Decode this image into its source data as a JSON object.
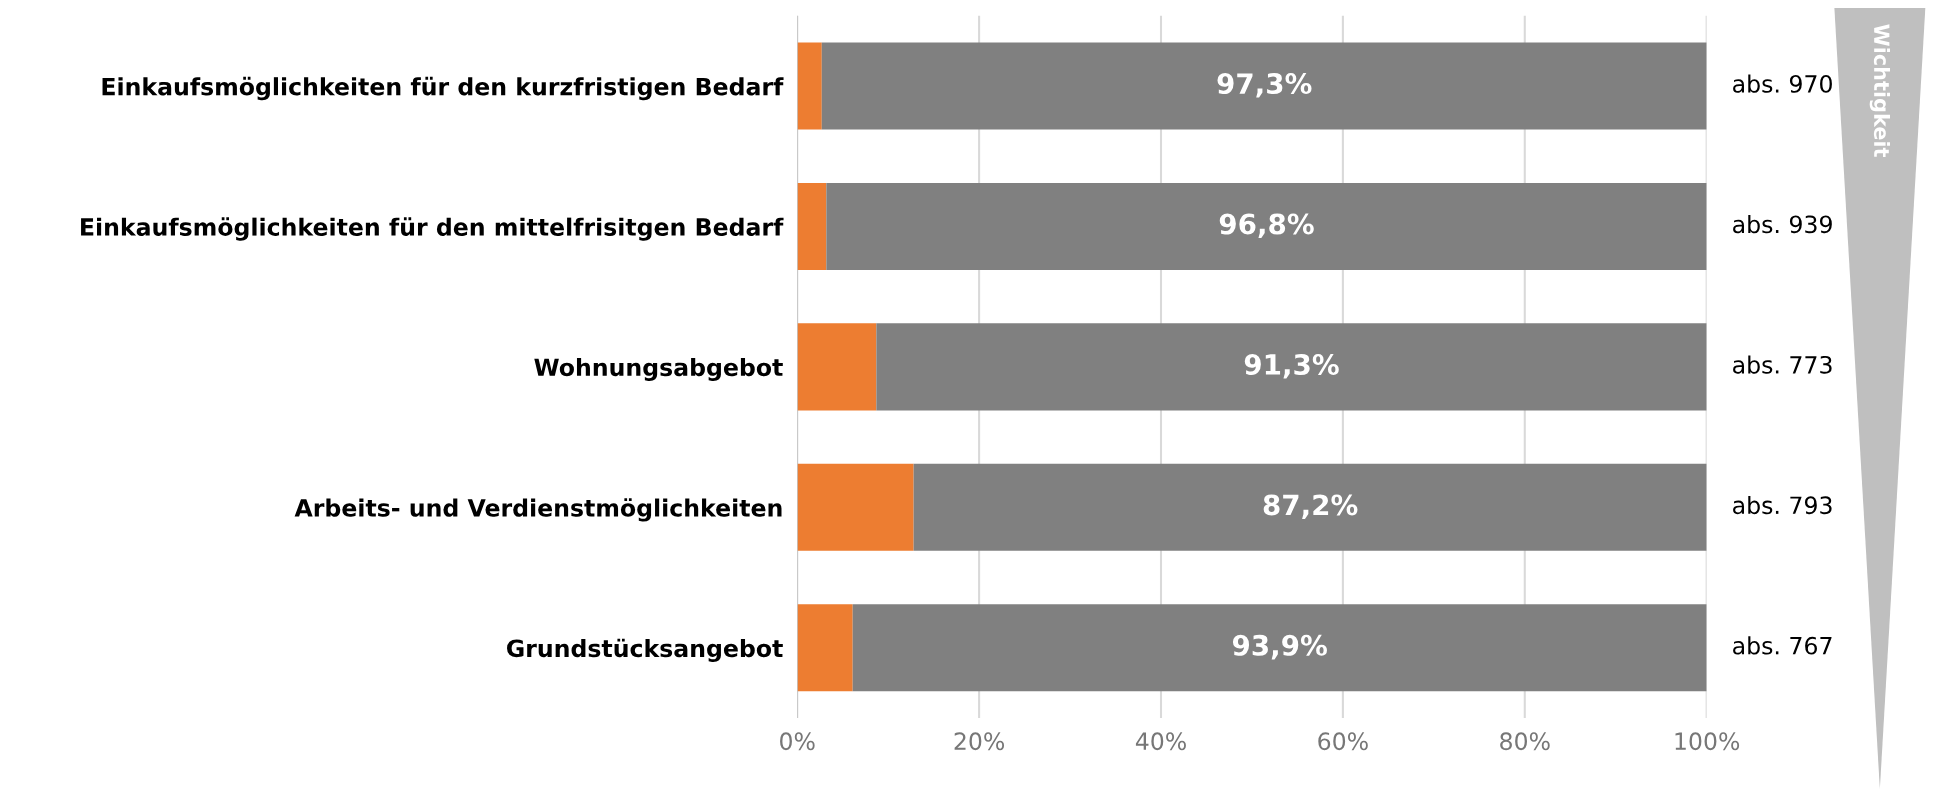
{
  "chart_data": {
    "type": "bar",
    "orientation": "horizontal",
    "stacked": true,
    "categories": [
      "Einkaufsmöglichkeiten für den kurzfristigen Bedarf",
      "Einkaufsmöglichkeiten für den mittelfrisitgen Bedarf",
      "Wohnungsabgebot",
      "Arbeits- und Verdienstmöglichkeiten",
      "Grundstücksangebot"
    ],
    "series": [
      {
        "color": "#ed7d31",
        "values": [
          2.7,
          3.2,
          8.7,
          12.8,
          6.1
        ]
      },
      {
        "color": "#808080",
        "values": [
          97.3,
          96.8,
          91.3,
          87.2,
          93.9
        ],
        "value_labels": [
          "97,3%",
          "96,8%",
          "91,3%",
          "87,2%",
          "93,9%"
        ]
      }
    ],
    "xlim": [
      0,
      100
    ],
    "xticks": [
      {
        "value": 0,
        "label": "0%"
      },
      {
        "value": 20,
        "label": "20%"
      },
      {
        "value": 40,
        "label": "40%"
      },
      {
        "value": 60,
        "label": "60%"
      },
      {
        "value": 80,
        "label": "80%"
      },
      {
        "value": 100,
        "label": "100%"
      }
    ],
    "grid": "x",
    "annotations": [
      "abs. 970",
      "abs. 939",
      "abs. 773",
      "abs. 793",
      "abs. 767",
      "Wichtigkeit"
    ]
  }
}
